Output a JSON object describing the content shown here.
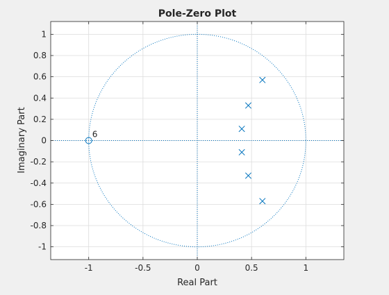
{
  "chart_data": {
    "type": "scatter",
    "title": "Pole-Zero Plot",
    "xlabel": "Real Part",
    "ylabel": "Imaginary Part",
    "xlim": [
      -1.35,
      1.35
    ],
    "ylim": [
      -1.12,
      1.12
    ],
    "xticks": [
      -1,
      -0.5,
      0,
      0.5,
      1
    ],
    "xtick_labels": [
      "-1",
      "-0.5",
      "0",
      "0.5",
      "1"
    ],
    "yticks": [
      1,
      0.8,
      0.6,
      0.4,
      0.2,
      0,
      -0.2,
      -0.4,
      -0.6,
      -0.8,
      -1
    ],
    "ytick_labels": [
      "1",
      "0.8",
      "0.6",
      "0.4",
      "0.2",
      "0",
      "-0.2",
      "-0.4",
      "-0.6",
      "-0.8",
      "-1"
    ],
    "grid": true,
    "unit_circle": true,
    "series": [
      {
        "marker": "o",
        "points": [
          {
            "x": -1.0,
            "y": 0.0,
            "label": "6"
          }
        ]
      },
      {
        "marker": "x",
        "points": [
          {
            "x": 0.6,
            "y": 0.57
          },
          {
            "x": 0.47,
            "y": 0.33
          },
          {
            "x": 0.41,
            "y": 0.11
          },
          {
            "x": 0.41,
            "y": -0.11
          },
          {
            "x": 0.47,
            "y": -0.33
          },
          {
            "x": 0.6,
            "y": -0.57
          }
        ]
      }
    ],
    "colors": {
      "marker": "#0072bd",
      "reference": "#0072bd",
      "grid": "#dcdcdc",
      "axes": "#262626"
    }
  }
}
